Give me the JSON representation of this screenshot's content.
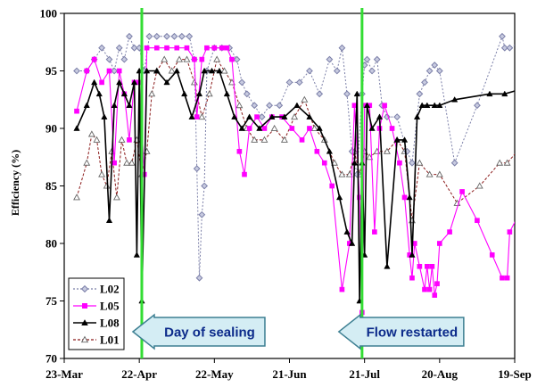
{
  "chart_data": {
    "type": "line",
    "ylabel": "Efficiency (%)",
    "xlabel": "",
    "ylim": [
      70,
      100
    ],
    "yticks": [
      70,
      75,
      80,
      85,
      90,
      95,
      100
    ],
    "xlim": [
      "2007-03-23",
      "2007-09-19"
    ],
    "xticks": [
      {
        "date": "2007-03-23",
        "label": "23-Mar"
      },
      {
        "date": "2007-04-22",
        "label": "22-Apr"
      },
      {
        "date": "2007-05-22",
        "label": "22-May"
      },
      {
        "date": "2007-06-21",
        "label": "21-Jun"
      },
      {
        "date": "2007-07-21",
        "label": "21-Jul"
      },
      {
        "date": "2007-08-20",
        "label": "20-Aug"
      },
      {
        "date": "2007-09-19",
        "label": "19-Sep"
      }
    ],
    "grid": false,
    "legend_position": "bottom-left",
    "series": [
      {
        "name": "L02",
        "color": "#7b7fa8",
        "marker": "diamond",
        "line": "dotted",
        "points": [
          [
            "2007-03-28",
            95
          ],
          [
            "2007-04-01",
            95
          ],
          [
            "2007-04-04",
            96
          ],
          [
            "2007-04-07",
            97
          ],
          [
            "2007-04-10",
            96
          ],
          [
            "2007-04-12",
            95
          ],
          [
            "2007-04-14",
            97
          ],
          [
            "2007-04-16",
            96
          ],
          [
            "2007-04-18",
            98
          ],
          [
            "2007-04-20",
            97
          ],
          [
            "2007-04-22",
            97
          ],
          [
            "2007-04-24",
            95
          ],
          [
            "2007-04-26",
            98
          ],
          [
            "2007-04-29",
            98
          ],
          [
            "2007-05-03",
            98
          ],
          [
            "2007-05-06",
            98
          ],
          [
            "2007-05-09",
            98
          ],
          [
            "2007-05-12",
            98
          ],
          [
            "2007-05-14",
            96
          ],
          [
            "2007-05-15",
            86.5
          ],
          [
            "2007-05-16",
            77
          ],
          [
            "2007-05-17",
            82.5
          ],
          [
            "2007-05-18",
            85
          ],
          [
            "2007-05-19",
            95
          ],
          [
            "2007-05-22",
            97
          ],
          [
            "2007-05-25",
            97
          ],
          [
            "2007-05-28",
            97
          ],
          [
            "2007-05-31",
            96
          ],
          [
            "2007-06-02",
            94
          ],
          [
            "2007-06-04",
            93
          ],
          [
            "2007-06-07",
            92
          ],
          [
            "2007-06-10",
            91
          ],
          [
            "2007-06-13",
            92
          ],
          [
            "2007-06-17",
            92
          ],
          [
            "2007-06-21",
            94
          ],
          [
            "2007-06-25",
            94
          ],
          [
            "2007-06-29",
            95
          ],
          [
            "2007-07-03",
            93
          ],
          [
            "2007-07-07",
            96
          ],
          [
            "2007-07-10",
            95
          ],
          [
            "2007-07-12",
            97
          ],
          [
            "2007-07-14",
            93
          ],
          [
            "2007-07-16",
            88
          ],
          [
            "2007-07-18",
            86
          ],
          [
            "2007-07-20",
            93
          ],
          [
            "2007-07-21",
            95.5
          ],
          [
            "2007-07-22",
            96
          ],
          [
            "2007-07-24",
            95
          ],
          [
            "2007-07-26",
            96
          ],
          [
            "2007-07-28",
            92
          ],
          [
            "2007-07-30",
            91
          ],
          [
            "2007-08-03",
            91
          ],
          [
            "2007-08-07",
            88
          ],
          [
            "2007-08-09",
            87
          ],
          [
            "2007-08-12",
            93
          ],
          [
            "2007-08-14",
            94
          ],
          [
            "2007-08-16",
            95
          ],
          [
            "2007-08-18",
            95.5
          ],
          [
            "2007-08-20",
            95
          ],
          [
            "2007-08-26",
            87
          ],
          [
            "2007-09-04",
            92
          ],
          [
            "2007-09-14",
            98
          ],
          [
            "2007-09-15",
            97
          ],
          [
            "2007-09-17",
            97
          ],
          [
            "2007-09-26",
            98
          ]
        ]
      },
      {
        "name": "L05",
        "color": "#ff00ff",
        "marker": "square",
        "line": "solid",
        "points": [
          [
            "2007-03-28",
            91.5
          ],
          [
            "2007-04-01",
            95
          ],
          [
            "2007-04-04",
            96
          ],
          [
            "2007-04-07",
            94
          ],
          [
            "2007-04-10",
            95
          ],
          [
            "2007-04-12",
            87
          ],
          [
            "2007-04-14",
            95
          ],
          [
            "2007-04-16",
            93
          ],
          [
            "2007-04-18",
            89
          ],
          [
            "2007-04-20",
            94
          ],
          [
            "2007-04-22",
            94
          ],
          [
            "2007-04-24",
            86
          ],
          [
            "2007-04-25",
            97
          ],
          [
            "2007-04-29",
            97
          ],
          [
            "2007-05-03",
            97
          ],
          [
            "2007-05-07",
            97
          ],
          [
            "2007-05-11",
            97
          ],
          [
            "2007-05-14",
            96
          ],
          [
            "2007-05-15",
            91
          ],
          [
            "2007-05-17",
            96
          ],
          [
            "2007-05-19",
            97
          ],
          [
            "2007-05-22",
            97
          ],
          [
            "2007-05-25",
            97
          ],
          [
            "2007-05-27",
            97
          ],
          [
            "2007-05-29",
            96
          ],
          [
            "2007-06-01",
            88
          ],
          [
            "2007-06-03",
            86
          ],
          [
            "2007-06-05",
            90
          ],
          [
            "2007-06-08",
            91
          ],
          [
            "2007-06-11",
            90
          ],
          [
            "2007-06-14",
            91
          ],
          [
            "2007-06-18",
            91
          ],
          [
            "2007-06-22",
            90
          ],
          [
            "2007-06-26",
            89
          ],
          [
            "2007-06-29",
            90
          ],
          [
            "2007-07-02",
            88
          ],
          [
            "2007-07-05",
            87
          ],
          [
            "2007-07-08",
            85
          ],
          [
            "2007-07-12",
            76
          ],
          [
            "2007-07-15",
            80
          ],
          [
            "2007-07-17",
            92
          ],
          [
            "2007-07-19",
            84
          ],
          [
            "2007-07-20",
            74
          ],
          [
            "2007-07-21",
            92
          ],
          [
            "2007-07-23",
            92
          ],
          [
            "2007-07-25",
            81
          ],
          [
            "2007-07-27",
            90
          ],
          [
            "2007-07-29",
            92
          ],
          [
            "2007-08-01",
            90
          ],
          [
            "2007-08-04",
            87
          ],
          [
            "2007-08-06",
            84
          ],
          [
            "2007-08-08",
            79
          ],
          [
            "2007-08-09",
            77
          ],
          [
            "2007-08-10",
            80
          ],
          [
            "2007-08-12",
            78
          ],
          [
            "2007-08-14",
            76
          ],
          [
            "2007-08-15",
            78
          ],
          [
            "2007-08-16",
            76
          ],
          [
            "2007-08-17",
            78
          ],
          [
            "2007-08-18",
            75.5
          ],
          [
            "2007-08-19",
            76.5
          ],
          [
            "2007-08-20",
            80
          ],
          [
            "2007-08-24",
            81
          ],
          [
            "2007-08-29",
            84.5
          ],
          [
            "2007-09-04",
            82
          ],
          [
            "2007-09-10",
            79
          ],
          [
            "2007-09-14",
            77
          ],
          [
            "2007-09-16",
            77
          ],
          [
            "2007-09-17",
            81
          ],
          [
            "2007-09-23",
            83.5
          ]
        ]
      },
      {
        "name": "L08",
        "color": "#000000",
        "marker": "triangle",
        "line": "solid",
        "points": [
          [
            "2007-03-28",
            90
          ],
          [
            "2007-04-01",
            92
          ],
          [
            "2007-04-04",
            94
          ],
          [
            "2007-04-06",
            93
          ],
          [
            "2007-04-08",
            91
          ],
          [
            "2007-04-10",
            82
          ],
          [
            "2007-04-12",
            92
          ],
          [
            "2007-04-14",
            94
          ],
          [
            "2007-04-16",
            93
          ],
          [
            "2007-04-18",
            92
          ],
          [
            "2007-04-20",
            94
          ],
          [
            "2007-04-21",
            79
          ],
          [
            "2007-04-22",
            95
          ],
          [
            "2007-04-23",
            75
          ],
          [
            "2007-04-25",
            95
          ],
          [
            "2007-04-29",
            95
          ],
          [
            "2007-05-03",
            94
          ],
          [
            "2007-05-07",
            95
          ],
          [
            "2007-05-10",
            93
          ],
          [
            "2007-05-13",
            91
          ],
          [
            "2007-05-16",
            93
          ],
          [
            "2007-05-18",
            95
          ],
          [
            "2007-05-21",
            95
          ],
          [
            "2007-05-24",
            95
          ],
          [
            "2007-05-27",
            93
          ],
          [
            "2007-05-30",
            91
          ],
          [
            "2007-06-02",
            90
          ],
          [
            "2007-06-05",
            91
          ],
          [
            "2007-06-09",
            90
          ],
          [
            "2007-06-14",
            91
          ],
          [
            "2007-06-19",
            91
          ],
          [
            "2007-06-24",
            92
          ],
          [
            "2007-06-29",
            91
          ],
          [
            "2007-07-03",
            90
          ],
          [
            "2007-07-07",
            88
          ],
          [
            "2007-07-11",
            84
          ],
          [
            "2007-07-14",
            81
          ],
          [
            "2007-07-16",
            80
          ],
          [
            "2007-07-17",
            87
          ],
          [
            "2007-07-18",
            93
          ],
          [
            "2007-07-19",
            75
          ],
          [
            "2007-07-20",
            87
          ],
          [
            "2007-07-21",
            79
          ],
          [
            "2007-07-22",
            92
          ],
          [
            "2007-07-24",
            90
          ],
          [
            "2007-07-27",
            91
          ],
          [
            "2007-07-30",
            78
          ],
          [
            "2007-08-03",
            89
          ],
          [
            "2007-08-06",
            89
          ],
          [
            "2007-08-08",
            84
          ],
          [
            "2007-08-09",
            79
          ],
          [
            "2007-08-11",
            91
          ],
          [
            "2007-08-13",
            92
          ],
          [
            "2007-08-15",
            92
          ],
          [
            "2007-08-18",
            92
          ],
          [
            "2007-08-20",
            92
          ],
          [
            "2007-08-26",
            92.5
          ],
          [
            "2007-09-09",
            93
          ],
          [
            "2007-09-15",
            93
          ],
          [
            "2007-09-23",
            93.5
          ]
        ]
      },
      {
        "name": "L01",
        "color": "#8b1a1a",
        "marker": "triangle-open",
        "line": "dashed",
        "points": [
          [
            "2007-03-28",
            84
          ],
          [
            "2007-04-01",
            87
          ],
          [
            "2007-04-03",
            89.5
          ],
          [
            "2007-04-05",
            89
          ],
          [
            "2007-04-07",
            86
          ],
          [
            "2007-04-09",
            85
          ],
          [
            "2007-04-11",
            88
          ],
          [
            "2007-04-13",
            84
          ],
          [
            "2007-04-15",
            89
          ],
          [
            "2007-04-17",
            87
          ],
          [
            "2007-04-19",
            87
          ],
          [
            "2007-04-21",
            89
          ],
          [
            "2007-04-23",
            86
          ],
          [
            "2007-04-25",
            88
          ],
          [
            "2007-04-27",
            93
          ],
          [
            "2007-04-29",
            95
          ],
          [
            "2007-05-02",
            96
          ],
          [
            "2007-05-05",
            95
          ],
          [
            "2007-05-08",
            96
          ],
          [
            "2007-05-11",
            96
          ],
          [
            "2007-05-14",
            94
          ],
          [
            "2007-05-17",
            91
          ],
          [
            "2007-05-20",
            93
          ],
          [
            "2007-05-23",
            96
          ],
          [
            "2007-05-26",
            95
          ],
          [
            "2007-05-29",
            94
          ],
          [
            "2007-06-01",
            92
          ],
          [
            "2007-06-04",
            90
          ],
          [
            "2007-06-07",
            89
          ],
          [
            "2007-06-11",
            89
          ],
          [
            "2007-06-15",
            90
          ],
          [
            "2007-06-19",
            89
          ],
          [
            "2007-06-23",
            91
          ],
          [
            "2007-06-27",
            92.5
          ],
          [
            "2007-07-01",
            90
          ],
          [
            "2007-07-05",
            89
          ],
          [
            "2007-07-09",
            87
          ],
          [
            "2007-07-12",
            86
          ],
          [
            "2007-07-15",
            86
          ],
          [
            "2007-07-17",
            88
          ],
          [
            "2007-07-19",
            86
          ],
          [
            "2007-07-21",
            88
          ],
          [
            "2007-07-23",
            87.5
          ],
          [
            "2007-07-26",
            88
          ],
          [
            "2007-07-30",
            88
          ],
          [
            "2007-08-03",
            89
          ],
          [
            "2007-08-06",
            88
          ],
          [
            "2007-08-09",
            82
          ],
          [
            "2007-08-12",
            87
          ],
          [
            "2007-08-16",
            86
          ],
          [
            "2007-08-20",
            86
          ],
          [
            "2007-08-27",
            83.5
          ],
          [
            "2007-09-05",
            85
          ],
          [
            "2007-09-13",
            87
          ],
          [
            "2007-09-16",
            87
          ],
          [
            "2007-09-26",
            89.5
          ]
        ]
      }
    ],
    "annotations": [
      {
        "type": "vline",
        "date": "2007-04-23",
        "color": "#33dd33"
      },
      {
        "type": "vline",
        "date": "2007-07-20",
        "color": "#33dd33"
      },
      {
        "type": "callout-arrow",
        "text": "Day of sealing",
        "points_to": "2007-04-23"
      },
      {
        "type": "callout-arrow",
        "text": "Flow restarted",
        "points_to": "2007-07-20"
      }
    ]
  }
}
